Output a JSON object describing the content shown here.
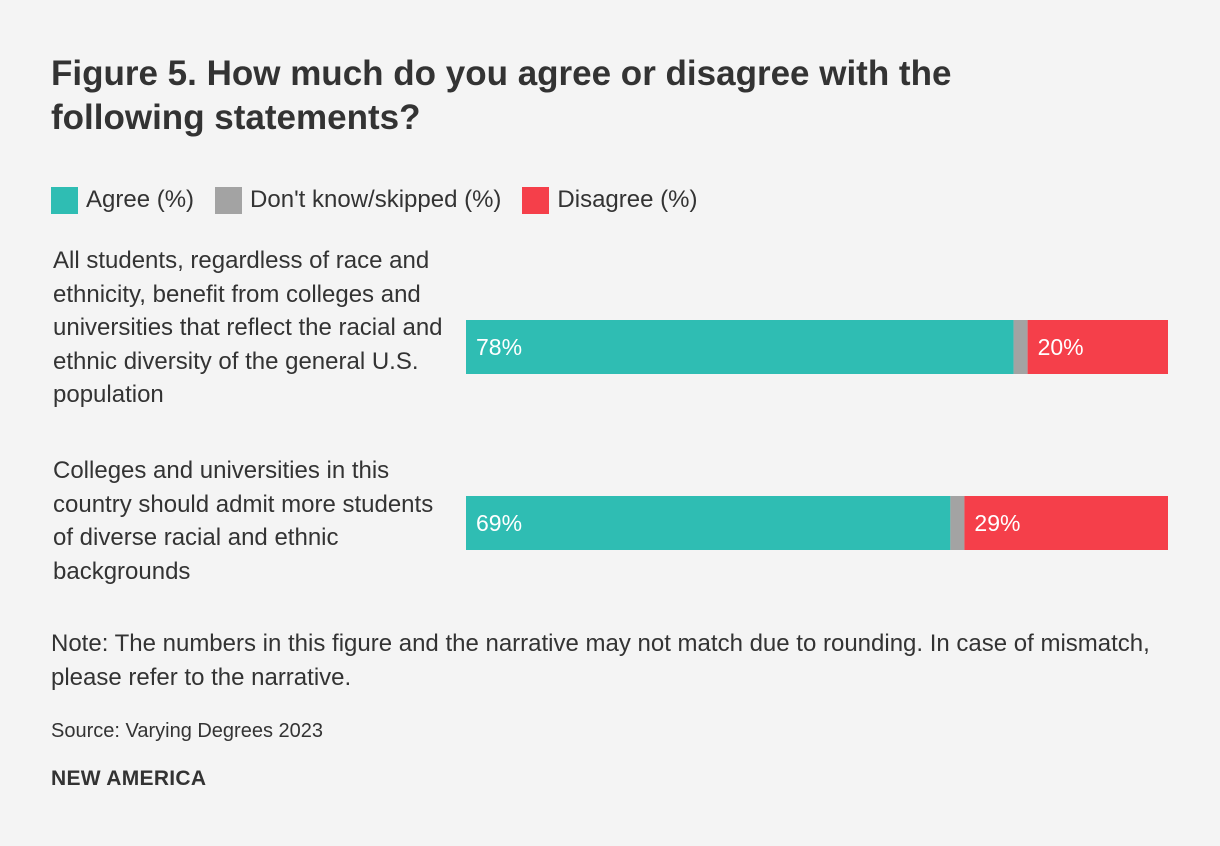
{
  "title": "Figure 5. How much do you agree or disagree with the following statements?",
  "legend": [
    {
      "label": "Agree (%)",
      "color": "#2fbdb3"
    },
    {
      "label": "Don't know/skipped (%)",
      "color": "#a3a3a3"
    },
    {
      "label": "Disagree (%)",
      "color": "#f53f4a"
    }
  ],
  "chart_data": {
    "type": "bar",
    "orientation": "horizontal",
    "stacked": true,
    "categories": [
      "All students, regardless of race and ethnicity, benefit from colleges and universities that reflect the racial and ethnic diversity of the general U.S. population",
      "Colleges and universities in this country should admit more students of diverse racial and ethnic backgrounds"
    ],
    "series": [
      {
        "name": "Agree (%)",
        "color": "#2fbdb3",
        "values": [
          78,
          69
        ],
        "labels": [
          "78%",
          "69%"
        ]
      },
      {
        "name": "Don't know/skipped (%)",
        "color": "#a3a3a3",
        "values": [
          2,
          2
        ],
        "labels": [
          "",
          ""
        ]
      },
      {
        "name": "Disagree (%)",
        "color": "#f53f4a",
        "values": [
          20,
          29
        ],
        "labels": [
          "20%",
          "29%"
        ]
      }
    ],
    "xlim": [
      0,
      100
    ],
    "grid": false,
    "legend_position": "top-left"
  },
  "note": "Note: The numbers in this figure and the narrative may not match due to rounding. In case of mismatch, please refer to the narrative.",
  "source": "Source: Varying Degrees 2023",
  "brand": "NEW AMERICA"
}
